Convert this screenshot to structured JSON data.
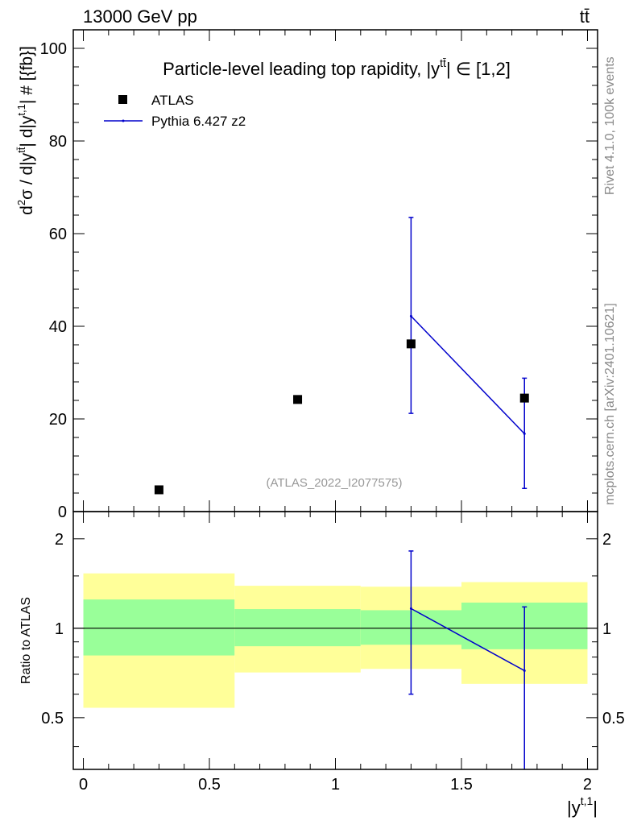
{
  "header": {
    "left_label": "13000 GeV pp",
    "right_label": "tt̄"
  },
  "side_labels": {
    "rivet": "Rivet 4.1.0,  100k events",
    "mcplots": "mcplots.cern.ch [arXiv:2401.10621]"
  },
  "colors": {
    "mc_line": "#0000cc",
    "data_marker": "#000000",
    "band_inner": "#99ff99",
    "band_outer": "#ffff99"
  },
  "chart_data": [
    {
      "type": "scatter",
      "title": "Particle-level leading top rapidity, |y̅tt̄| ∈ [1,2]",
      "title_text": "Particle-level leading top rapidity, |y",
      "title_sup": "tt̄",
      "title_tail": "| ∈ [1,2]",
      "xlabel": "|yt,1|",
      "ylabel": "d²σ / d|ytt̄| d|yt,1| # [{fb}]",
      "ylabel_parts": [
        "d",
        "2",
        "σ / d|y",
        "tt̄",
        "| d|y",
        "t,1",
        "| # [{fb}]"
      ],
      "xlim": [
        -0.04,
        2.04
      ],
      "ylim": [
        0,
        104
      ],
      "yticks": [
        0,
        20,
        40,
        60,
        80,
        100
      ],
      "yticklabels": [
        "0",
        "20",
        "40",
        "60",
        "80",
        "100"
      ],
      "annotation": "(ATLAS_2022_I2077575)",
      "legend_position": "top-left",
      "series": [
        {
          "name": "ATLAS",
          "kind": "data",
          "x": [
            0.3,
            0.85,
            1.3,
            1.75
          ],
          "y": [
            4.7,
            24.2,
            36.2,
            24.5
          ]
        },
        {
          "name": "Pythia 6.427 z2",
          "kind": "mc",
          "x": [
            1.3,
            1.75
          ],
          "y": [
            42.2,
            16.8
          ],
          "yerr_low": [
            21.2,
            5.0
          ],
          "yerr_high": [
            63.5,
            28.8
          ]
        }
      ]
    },
    {
      "type": "ratio",
      "ylabel": "Ratio to ATLAS",
      "xlim": [
        -0.04,
        2.04
      ],
      "ylim": [
        0.335,
        2.47
      ],
      "log_y": true,
      "yticks": [
        0.5,
        1,
        2
      ],
      "yticklabels": [
        "0.5",
        "1",
        "2"
      ],
      "xticks": [
        0,
        0.5,
        1,
        1.5,
        2
      ],
      "xticklabels": [
        "0",
        "0.5",
        "1",
        "1.5",
        "2"
      ],
      "bins": [
        {
          "lo": 0.0,
          "hi": 0.6,
          "inner": [
            0.81,
            1.25
          ],
          "outer": [
            0.54,
            1.53
          ]
        },
        {
          "lo": 0.6,
          "hi": 1.1,
          "inner": [
            0.87,
            1.16
          ],
          "outer": [
            0.71,
            1.39
          ]
        },
        {
          "lo": 1.1,
          "hi": 1.5,
          "inner": [
            0.88,
            1.15
          ],
          "outer": [
            0.73,
            1.38
          ]
        },
        {
          "lo": 1.5,
          "hi": 2.0,
          "inner": [
            0.85,
            1.22
          ],
          "outer": [
            0.65,
            1.43
          ]
        }
      ],
      "mc_ratio": {
        "x": [
          1.3,
          1.75
        ],
        "y": [
          1.165,
          0.72
        ],
        "yerr_low": [
          0.6,
          0.33
        ],
        "yerr_high": [
          1.82,
          1.18
        ]
      }
    }
  ]
}
